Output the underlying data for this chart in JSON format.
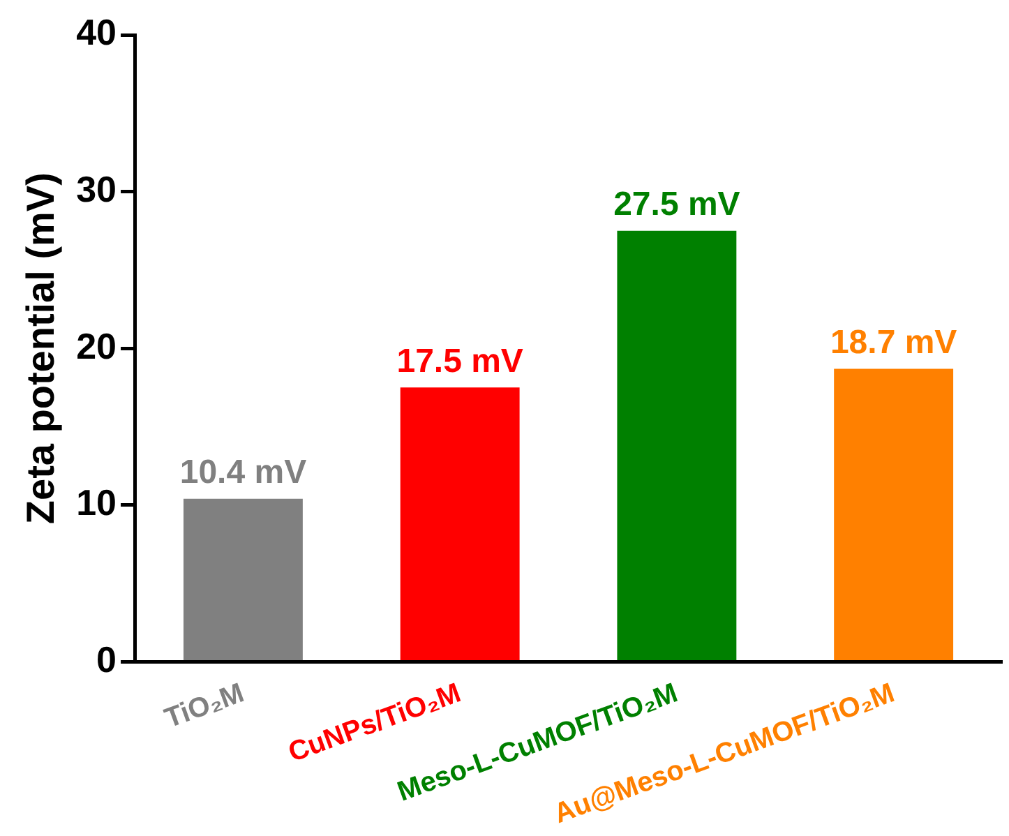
{
  "chart_data": {
    "type": "bar",
    "ylabel": "Zeta potential (mV)",
    "categories": [
      "TiO₂M",
      "CuNPs/TiO₂M",
      "Meso-L-CuMOF/TiO₂M",
      "Au@Meso-L-CuMOF/TiO₂M"
    ],
    "values": [
      10.4,
      17.5,
      27.5,
      18.7
    ],
    "colors": [
      "#808080",
      "#ff0000",
      "#008000",
      "#ff8000"
    ],
    "value_labels": [
      "10.4 mV",
      "17.5 mV",
      "27.5 mV",
      "18.7 mV"
    ],
    "ylim": [
      0,
      40
    ],
    "yticks": [
      0,
      10,
      20,
      30,
      40
    ],
    "grid": false,
    "legend": false
  }
}
